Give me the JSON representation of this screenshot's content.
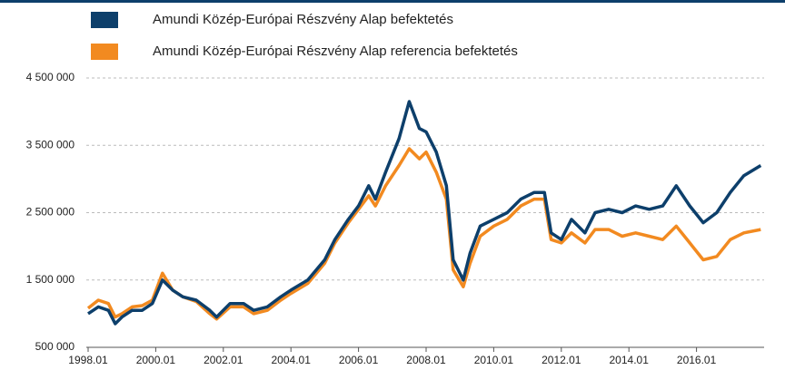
{
  "chart_data": {
    "type": "line",
    "x": [
      1998.0,
      1998.3,
      1998.6,
      1998.8,
      1999.0,
      1999.3,
      1999.6,
      1999.9,
      2000.2,
      2000.5,
      2000.8,
      2001.2,
      2001.6,
      2001.8,
      2002.2,
      2002.6,
      2002.9,
      2003.3,
      2003.7,
      2004.0,
      2004.5,
      2005.0,
      2005.3,
      2005.7,
      2006.0,
      2006.3,
      2006.5,
      2006.8,
      2007.2,
      2007.5,
      2007.8,
      2008.0,
      2008.3,
      2008.6,
      2008.8,
      2009.1,
      2009.3,
      2009.6,
      2010.0,
      2010.4,
      2010.8,
      2011.2,
      2011.5,
      2011.7,
      2012.0,
      2012.3,
      2012.7,
      2013.0,
      2013.4,
      2013.8,
      2014.2,
      2014.6,
      2015.0,
      2015.4,
      2015.8,
      2016.2,
      2016.6,
      2017.0,
      2017.4,
      2017.9
    ],
    "series": [
      {
        "name": "Amundi Közép-Európai Részvény Alap befektetés",
        "color": "#0d3f6b",
        "values": [
          1000000,
          1100000,
          1050000,
          850000,
          950000,
          1050000,
          1050000,
          1150000,
          1500000,
          1350000,
          1250000,
          1200000,
          1050000,
          950000,
          1150000,
          1150000,
          1050000,
          1100000,
          1250000,
          1350000,
          1500000,
          1800000,
          2100000,
          2400000,
          2600000,
          2900000,
          2700000,
          3100000,
          3600000,
          4150000,
          3750000,
          3700000,
          3400000,
          2900000,
          1800000,
          1500000,
          1900000,
          2300000,
          2400000,
          2500000,
          2700000,
          2800000,
          2800000,
          2200000,
          2100000,
          2400000,
          2200000,
          2500000,
          2550000,
          2500000,
          2600000,
          2550000,
          2600000,
          2900000,
          2600000,
          2350000,
          2500000,
          2800000,
          3050000,
          3200000
        ]
      },
      {
        "name": "Amundi Közép-Európai Részvény Alap referencia befektetés",
        "color": "#f28a20",
        "values": [
          1080000,
          1200000,
          1150000,
          950000,
          1000000,
          1100000,
          1120000,
          1200000,
          1600000,
          1350000,
          1250000,
          1180000,
          1000000,
          920000,
          1100000,
          1100000,
          1000000,
          1050000,
          1200000,
          1300000,
          1450000,
          1750000,
          2050000,
          2350000,
          2550000,
          2750000,
          2600000,
          2900000,
          3200000,
          3450000,
          3300000,
          3400000,
          3100000,
          2700000,
          1650000,
          1400000,
          1750000,
          2150000,
          2300000,
          2400000,
          2600000,
          2700000,
          2700000,
          2100000,
          2050000,
          2200000,
          2050000,
          2250000,
          2250000,
          2150000,
          2200000,
          2150000,
          2100000,
          2300000,
          2050000,
          1800000,
          1850000,
          2100000,
          2200000,
          2250000
        ]
      }
    ],
    "xlim": [
      1998,
      2018
    ],
    "xticks": [
      {
        "value": 1998,
        "label": "1998.01"
      },
      {
        "value": 2000,
        "label": "2000.01"
      },
      {
        "value": 2002,
        "label": "2002.01"
      },
      {
        "value": 2004,
        "label": "2004.01"
      },
      {
        "value": 2006,
        "label": "2006.01"
      },
      {
        "value": 2008,
        "label": "2008.01"
      },
      {
        "value": 2010,
        "label": "2010.01"
      },
      {
        "value": 2012,
        "label": "2012.01"
      },
      {
        "value": 2014,
        "label": "2014.01"
      },
      {
        "value": 2016,
        "label": "2016.01"
      }
    ],
    "ylim": [
      500000,
      4500000
    ],
    "yticks": [
      {
        "value": 500000,
        "label": "500 000"
      },
      {
        "value": 1500000,
        "label": "1 500 000"
      },
      {
        "value": 2500000,
        "label": "2 500 000"
      },
      {
        "value": 3500000,
        "label": "3 500 000"
      },
      {
        "value": 4500000,
        "label": "4 500 000"
      }
    ],
    "grid": true
  }
}
